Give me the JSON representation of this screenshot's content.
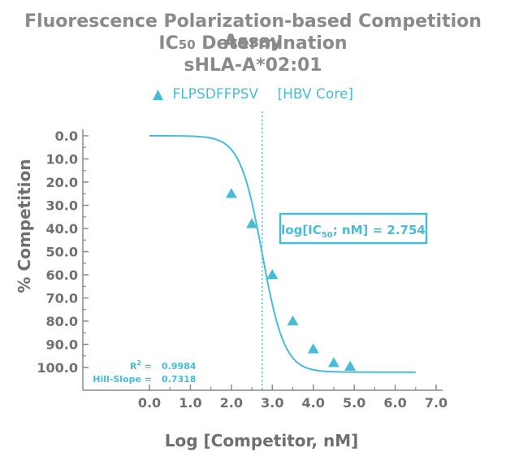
{
  "chart_data": {
    "type": "scatter",
    "title_line1": "Fluorescence Polarization-based Competition Assay",
    "title_line2_main": "IC",
    "title_line2_sub": "50",
    "title_line2_rest": " Determination",
    "title_line3": "sHLA-A*02:01",
    "xlabel": "Log [Competitor, nM]",
    "ylabel": "% Competition",
    "xlim": [
      0.0,
      7.0
    ],
    "ylim": [
      0.0,
      100.0
    ],
    "y_inverted": true,
    "x_ticks": [
      "0.0",
      "1.0",
      "2.0",
      "3.0",
      "4.0",
      "5.0",
      "6.0",
      "7.0"
    ],
    "y_ticks": [
      "0.0",
      "10.0",
      "20.0",
      "30.0",
      "40.0",
      "50.0",
      "60.0",
      "70.0",
      "80.0",
      "90.0",
      "100.0"
    ],
    "legend": {
      "position": "top",
      "marker": "triangle",
      "label": "FLPSDFFPSV",
      "label_extra": "[HBV Core]"
    },
    "series": [
      {
        "name": "FLPSDFFPSV [HBV Core]",
        "x": [
          2.0,
          2.5,
          3.0,
          3.5,
          4.0,
          4.5,
          4.9
        ],
        "y": [
          25,
          38,
          60,
          80,
          92,
          98,
          99.5
        ]
      }
    ],
    "fit_curve": {
      "top": 0.0,
      "bottom": 102.0,
      "log_ic50": 2.754,
      "hill_slope": 0.7318,
      "x_range": [
        0.0,
        6.5
      ]
    },
    "ic50_marker_x": 2.754,
    "ic50_box": {
      "prefix": "log[IC",
      "sub": "50",
      "suffix": "; nM] = 2.754"
    },
    "stats": {
      "r2_label": "R",
      "r2_sup": "2",
      "r2_eq": " =",
      "r2_value": "0.9984",
      "hill_label": "Hill-Slope =",
      "hill_value": "0.7318"
    },
    "colors": {
      "accent": "#47bcd6",
      "title": "#8a8a8a",
      "axis": "#8a8a8a"
    }
  }
}
